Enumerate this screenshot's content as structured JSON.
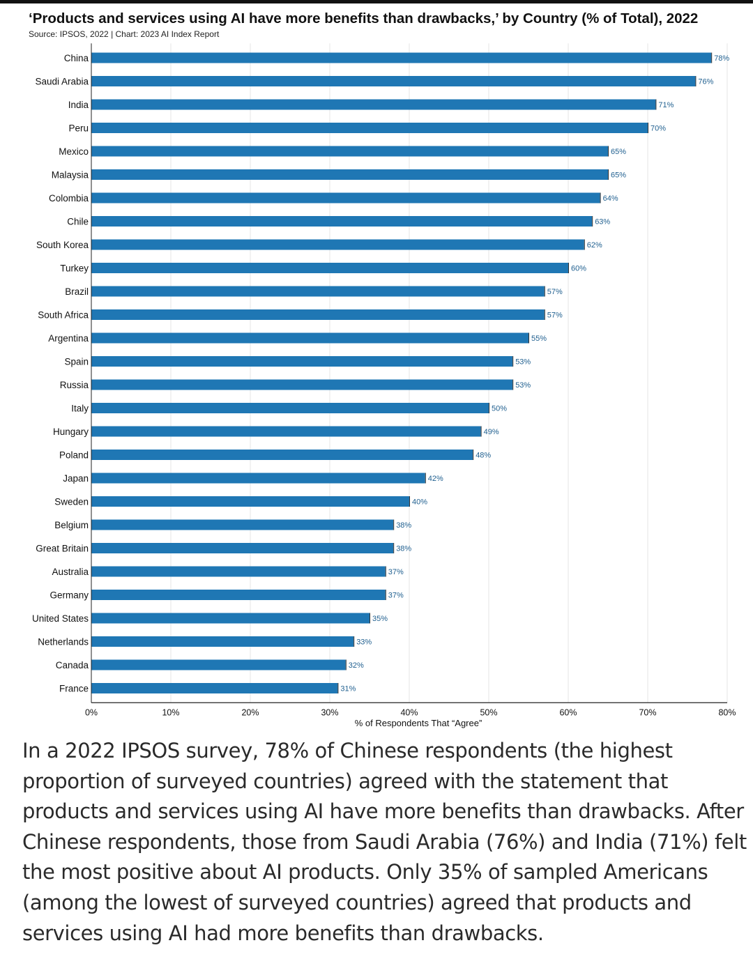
{
  "chart_data": {
    "type": "bar",
    "orientation": "horizontal",
    "title": "‘Products and services using AI have more benefits than drawbacks,’ by Country (% of Total), 2022",
    "source": "Source: IPSOS, 2022 | Chart: 2023 AI Index Report",
    "xlabel": "% of Respondents That “Agree”",
    "ylabel": "",
    "xlim": [
      0,
      80
    ],
    "xticks": [
      "0%",
      "10%",
      "20%",
      "30%",
      "40%",
      "50%",
      "60%",
      "70%",
      "80%"
    ],
    "grid": true,
    "color": "#1f77b4",
    "categories": [
      "China",
      "Saudi Arabia",
      "India",
      "Peru",
      "Mexico",
      "Malaysia",
      "Colombia",
      "Chile",
      "South Korea",
      "Turkey",
      "Brazil",
      "South Africa",
      "Argentina",
      "Spain",
      "Russia",
      "Italy",
      "Hungary",
      "Poland",
      "Japan",
      "Sweden",
      "Belgium",
      "Great Britain",
      "Australia",
      "Germany",
      "United States",
      "Netherlands",
      "Canada",
      "France"
    ],
    "values": [
      78,
      76,
      71,
      70,
      65,
      65,
      64,
      63,
      62,
      60,
      57,
      57,
      55,
      53,
      53,
      50,
      49,
      48,
      42,
      40,
      38,
      38,
      37,
      37,
      35,
      33,
      32,
      31
    ],
    "data_labels": [
      "78%",
      "76%",
      "71%",
      "70%",
      "65%",
      "65%",
      "64%",
      "63%",
      "62%",
      "60%",
      "57%",
      "57%",
      "55%",
      "53%",
      "53%",
      "50%",
      "49%",
      "48%",
      "42%",
      "40%",
      "38%",
      "38%",
      "37%",
      "37%",
      "35%",
      "33%",
      "32%",
      "31%"
    ]
  },
  "caption": "In a 2022 IPSOS survey, 78% of Chinese respondents (the highest proportion of surveyed countries) agreed with the statement that products and services using AI have more benefits than drawbacks. After Chinese respondents, those from Saudi Arabia (76%) and India (71%) felt the most positive about AI products. Only 35% of sampled Americans (among the lowest of surveyed countries) agreed that products and services using AI had more benefits than drawbacks."
}
